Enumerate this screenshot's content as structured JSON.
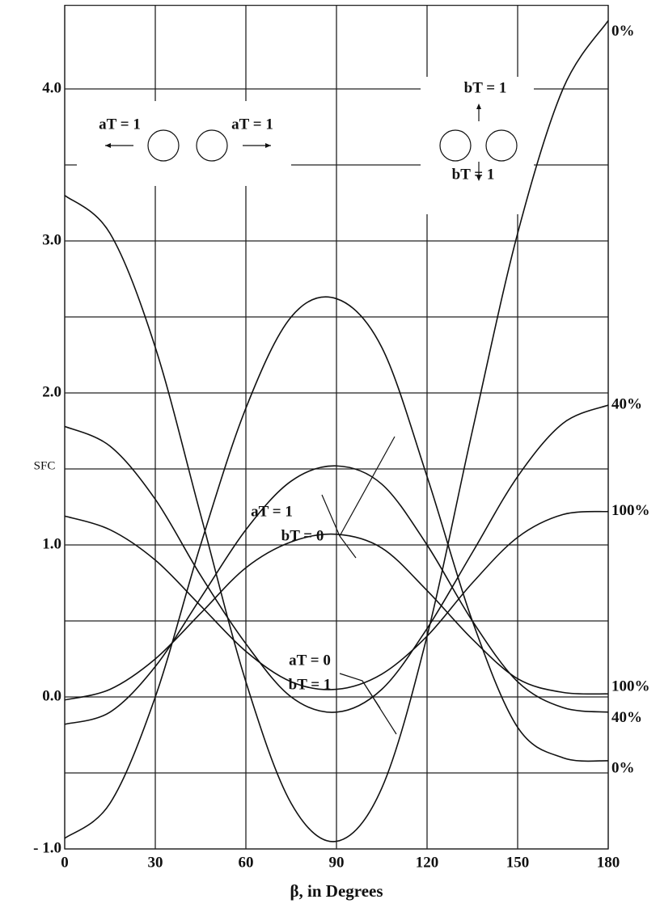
{
  "chart_data": {
    "type": "line",
    "xlabel": "β, in Degrees",
    "ylabel": "SFC",
    "x": [
      0,
      15,
      30,
      45,
      60,
      75,
      90,
      105,
      120,
      135,
      150,
      165,
      180
    ],
    "xlim": [
      0,
      180
    ],
    "xticks": [
      0,
      30,
      60,
      90,
      120,
      150,
      180
    ],
    "ylim": [
      -1.0,
      4.55
    ],
    "yticks": [
      {
        "value": -1,
        "label": "- 1.0"
      },
      {
        "value": 0,
        "label": "0.0"
      },
      {
        "value": 1,
        "label": "1.0"
      },
      {
        "value": 2,
        "label": "2.0"
      },
      {
        "value": 3,
        "label": "3.0"
      },
      {
        "value": 4,
        "label": "4.0"
      }
    ],
    "ygrid": [
      -0.5,
      0.5,
      1.5,
      2.5,
      3.5
    ],
    "grid": true,
    "series": [
      {
        "name": "0%",
        "color": "#111111",
        "values": [
          3.3,
          3.05,
          2.3,
          1.2,
          0.1,
          -0.7,
          -0.95,
          -0.6,
          0.4,
          1.75,
          3.05,
          4.0,
          4.45
        ]
      },
      {
        "name": "0%",
        "color": "#111111",
        "values": [
          -0.93,
          -0.7,
          0.0,
          1.0,
          1.9,
          2.5,
          2.62,
          2.3,
          1.45,
          0.5,
          -0.2,
          -0.4,
          -0.42
        ]
      },
      {
        "name": "40%",
        "color": "#111111",
        "values": [
          1.78,
          1.65,
          1.3,
          0.8,
          0.35,
          0.0,
          -0.1,
          0.05,
          0.45,
          0.95,
          1.45,
          1.8,
          1.92
        ]
      },
      {
        "name": "40%",
        "color": "#111111",
        "values": [
          -0.18,
          -0.1,
          0.2,
          0.65,
          1.1,
          1.42,
          1.52,
          1.4,
          1.0,
          0.5,
          0.1,
          -0.07,
          -0.1
        ]
      },
      {
        "name": "100%",
        "color": "#111111",
        "values": [
          1.19,
          1.1,
          0.9,
          0.6,
          0.3,
          0.1,
          0.05,
          0.15,
          0.4,
          0.75,
          1.05,
          1.2,
          1.22
        ]
      },
      {
        "name": "100%",
        "color": "#111111",
        "values": [
          -0.02,
          0.05,
          0.25,
          0.55,
          0.85,
          1.02,
          1.07,
          0.98,
          0.7,
          0.38,
          0.12,
          0.03,
          0.02
        ]
      }
    ],
    "annotations": [
      "aT = 1",
      "bT = 0",
      "aT = 0",
      "bT = 1",
      "aT = 1",
      "aT = 1",
      "bT = 1",
      "bT = 1"
    ]
  }
}
